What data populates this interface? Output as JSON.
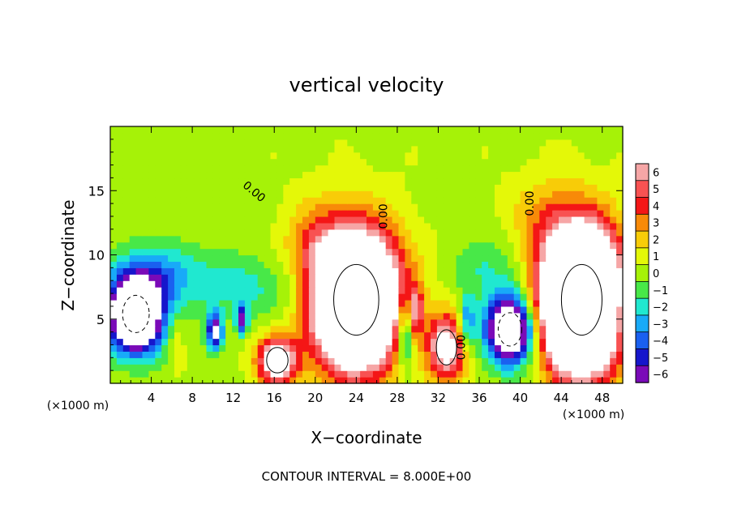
{
  "chart_data": {
    "type": "heatmap",
    "title": "vertical velocity",
    "xlabel": "X−coordinate",
    "ylabel": "Z−coordinate",
    "x_units_left": "(×1000 m)",
    "x_units_right": "(×1000 m)",
    "xlim": [
      0,
      50
    ],
    "ylim": [
      0,
      20
    ],
    "x_ticks": [
      4,
      8,
      12,
      16,
      20,
      24,
      28,
      32,
      36,
      40,
      44,
      48
    ],
    "y_ticks": [
      5,
      10,
      15
    ],
    "footer": "CONTOUR INTERVAL = 8.000E+00",
    "contour_labels": [
      {
        "text": "0.00",
        "x": 13.8,
        "z": 14.7,
        "angle": 40
      },
      {
        "text": "0.00",
        "x": 27.0,
        "z": 13.0,
        "angle": -90
      },
      {
        "text": "0.00",
        "x": 41.3,
        "z": 14.0,
        "angle": -90
      },
      {
        "text": "0.00",
        "x": 34.6,
        "z": 2.8,
        "angle": -90
      }
    ],
    "colorbar": {
      "values": [
        6,
        5,
        4,
        3,
        2,
        1,
        0,
        -1,
        -2,
        -3,
        -4,
        -5,
        -6
      ],
      "labels": [
        "6",
        "5",
        "4",
        "3",
        "2",
        "1",
        "0",
        "−1",
        "−2",
        "−3",
        "−4",
        "−5",
        "−6"
      ],
      "colors": [
        "#f6a6a6",
        "#f85252",
        "#f41616",
        "#f88a08",
        "#f8cc08",
        "#e4f808",
        "#a6f208",
        "#48e848",
        "#20e8d0",
        "#18aaf8",
        "#1a60f0",
        "#1616cc",
        "#7a0ab8"
      ]
    },
    "updrafts": [
      {
        "x": 24.0,
        "z": 6.5,
        "rx": 4.0,
        "rz": 5.0,
        "w": 20
      },
      {
        "x": 46.0,
        "z": 6.5,
        "rx": 3.6,
        "rz": 5.0,
        "w": 26
      },
      {
        "x": 16.3,
        "z": 1.8,
        "rx": 1.9,
        "rz": 1.8,
        "w": 9
      },
      {
        "x": 32.8,
        "z": 2.8,
        "rx": 1.8,
        "rz": 2.5,
        "w": 8
      },
      {
        "x": 29.8,
        "z": 5.6,
        "rx": 0.7,
        "rz": 2.0,
        "w": 5
      },
      {
        "x": 20.0,
        "z": 10.8,
        "rx": 2.8,
        "rz": 3.2,
        "w": 2.5
      },
      {
        "x": 42.5,
        "z": 13.0,
        "rx": 3.5,
        "rz": 3.0,
        "w": 2
      },
      {
        "x": 6.5,
        "z": 3.2,
        "rx": 0.7,
        "rz": 2.2,
        "w": 1.2
      }
    ],
    "downdrafts": [
      {
        "x": 2.5,
        "z": 5.4,
        "rx": 2.6,
        "rz": 2.9,
        "w": -14
      },
      {
        "x": 39.0,
        "z": 4.2,
        "rx": 2.3,
        "rz": 2.6,
        "w": -12
      },
      {
        "x": 10.2,
        "z": 4.0,
        "rx": 0.8,
        "rz": 1.5,
        "w": -7
      },
      {
        "x": 12.8,
        "z": 5.0,
        "rx": 0.6,
        "rz": 1.2,
        "w": -6
      },
      {
        "x": 28.8,
        "z": 4.0,
        "rx": 0.9,
        "rz": 3.0,
        "w": -5
      },
      {
        "x": 34.8,
        "z": 4.8,
        "rx": 0.8,
        "rz": 2.0,
        "w": -4
      },
      {
        "x": 5.0,
        "z": 8.5,
        "rx": 5.0,
        "rz": 2.5,
        "w": -3
      },
      {
        "x": 14.0,
        "z": 7.5,
        "rx": 6.0,
        "rz": 2.5,
        "w": -2
      },
      {
        "x": 49.8,
        "z": 6.0,
        "rx": 0.6,
        "rz": 3.0,
        "w": -3
      },
      {
        "x": 36.5,
        "z": 9.0,
        "rx": 3.0,
        "rz": 2.5,
        "w": -2
      }
    ]
  }
}
